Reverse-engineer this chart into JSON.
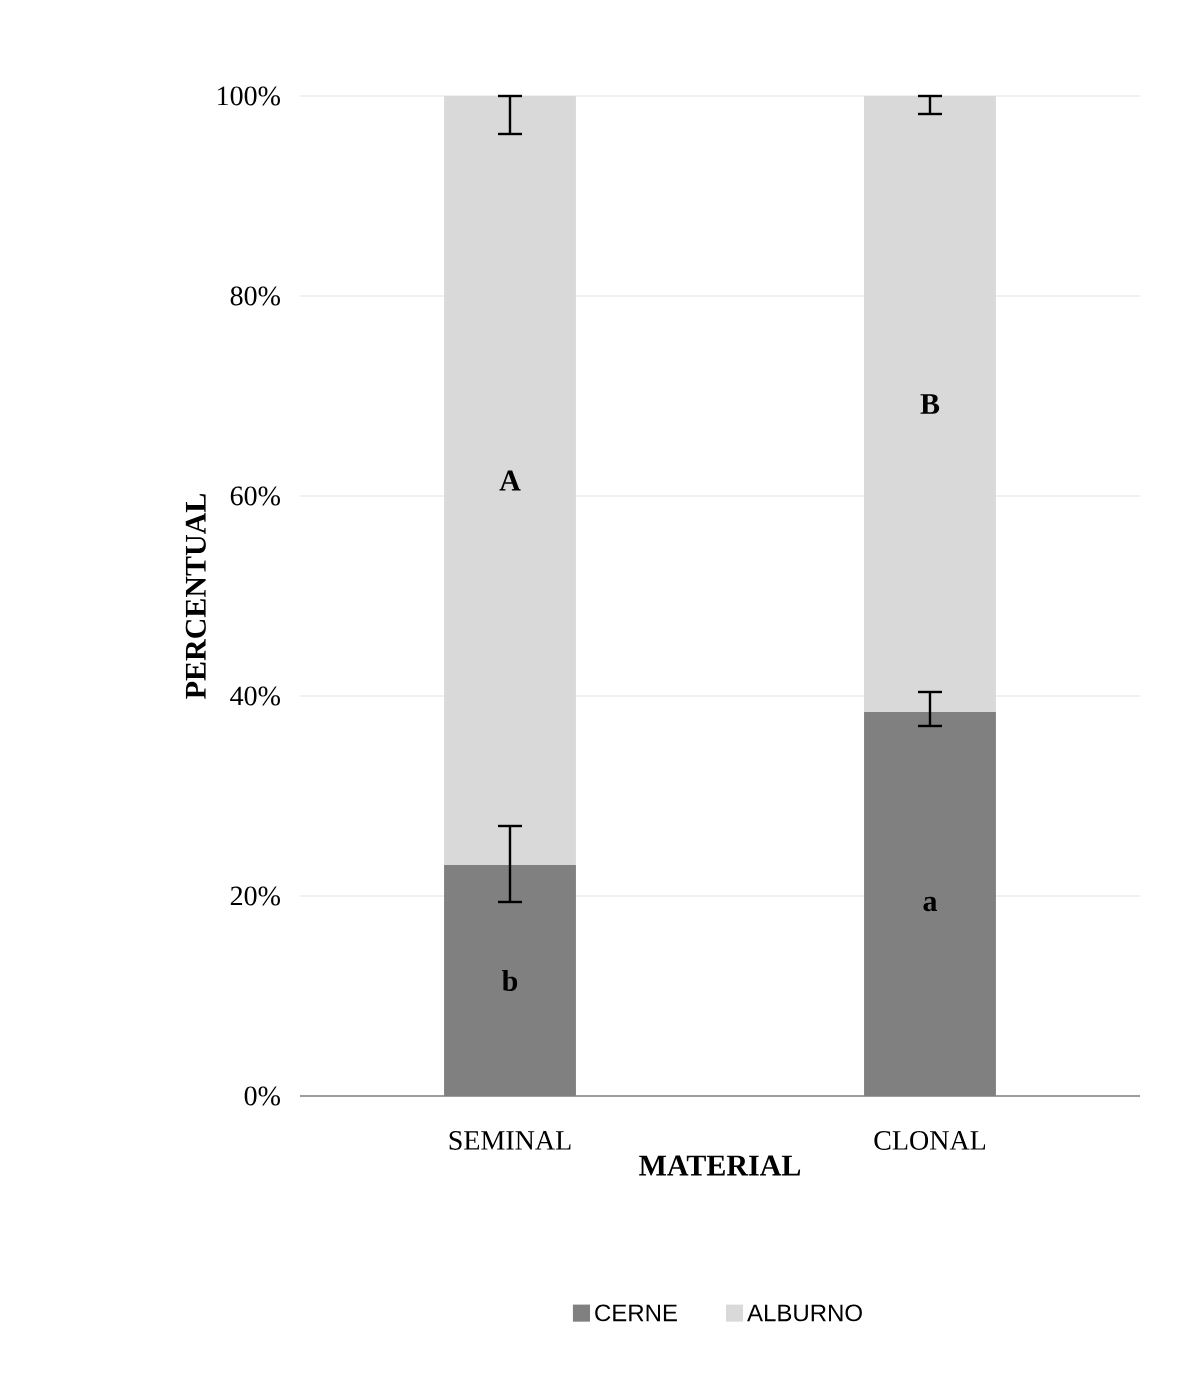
{
  "chart_data": {
    "type": "bar",
    "stacked": true,
    "xlabel": "MATERIAL",
    "ylabel": "PERCENTUAL",
    "categories": [
      "SEMINAL",
      "CLONAL"
    ],
    "series": [
      {
        "name": "CERNE",
        "color": "#808080",
        "values": [
          23.1,
          38.4
        ],
        "errors": [
          [
            19.4,
            27.0
          ],
          [
            37.0,
            40.4
          ]
        ]
      },
      {
        "name": "ALBURNO",
        "color": "#d9d9d9",
        "values": [
          76.9,
          61.6
        ],
        "errors": [
          [
            96.2,
            100
          ],
          [
            98.2,
            100
          ]
        ]
      }
    ],
    "ylim": [
      0,
      100
    ],
    "yticks": [
      {
        "value": 0,
        "label": "0%"
      },
      {
        "value": 20,
        "label": "20%"
      },
      {
        "value": 40,
        "label": "40%"
      },
      {
        "value": 60,
        "label": "60%"
      },
      {
        "value": 80,
        "label": "80%"
      },
      {
        "value": 100,
        "label": "100%"
      }
    ],
    "grid": "y",
    "legend": "bottom",
    "annotations": [
      "b",
      "A",
      "a",
      "B"
    ]
  }
}
